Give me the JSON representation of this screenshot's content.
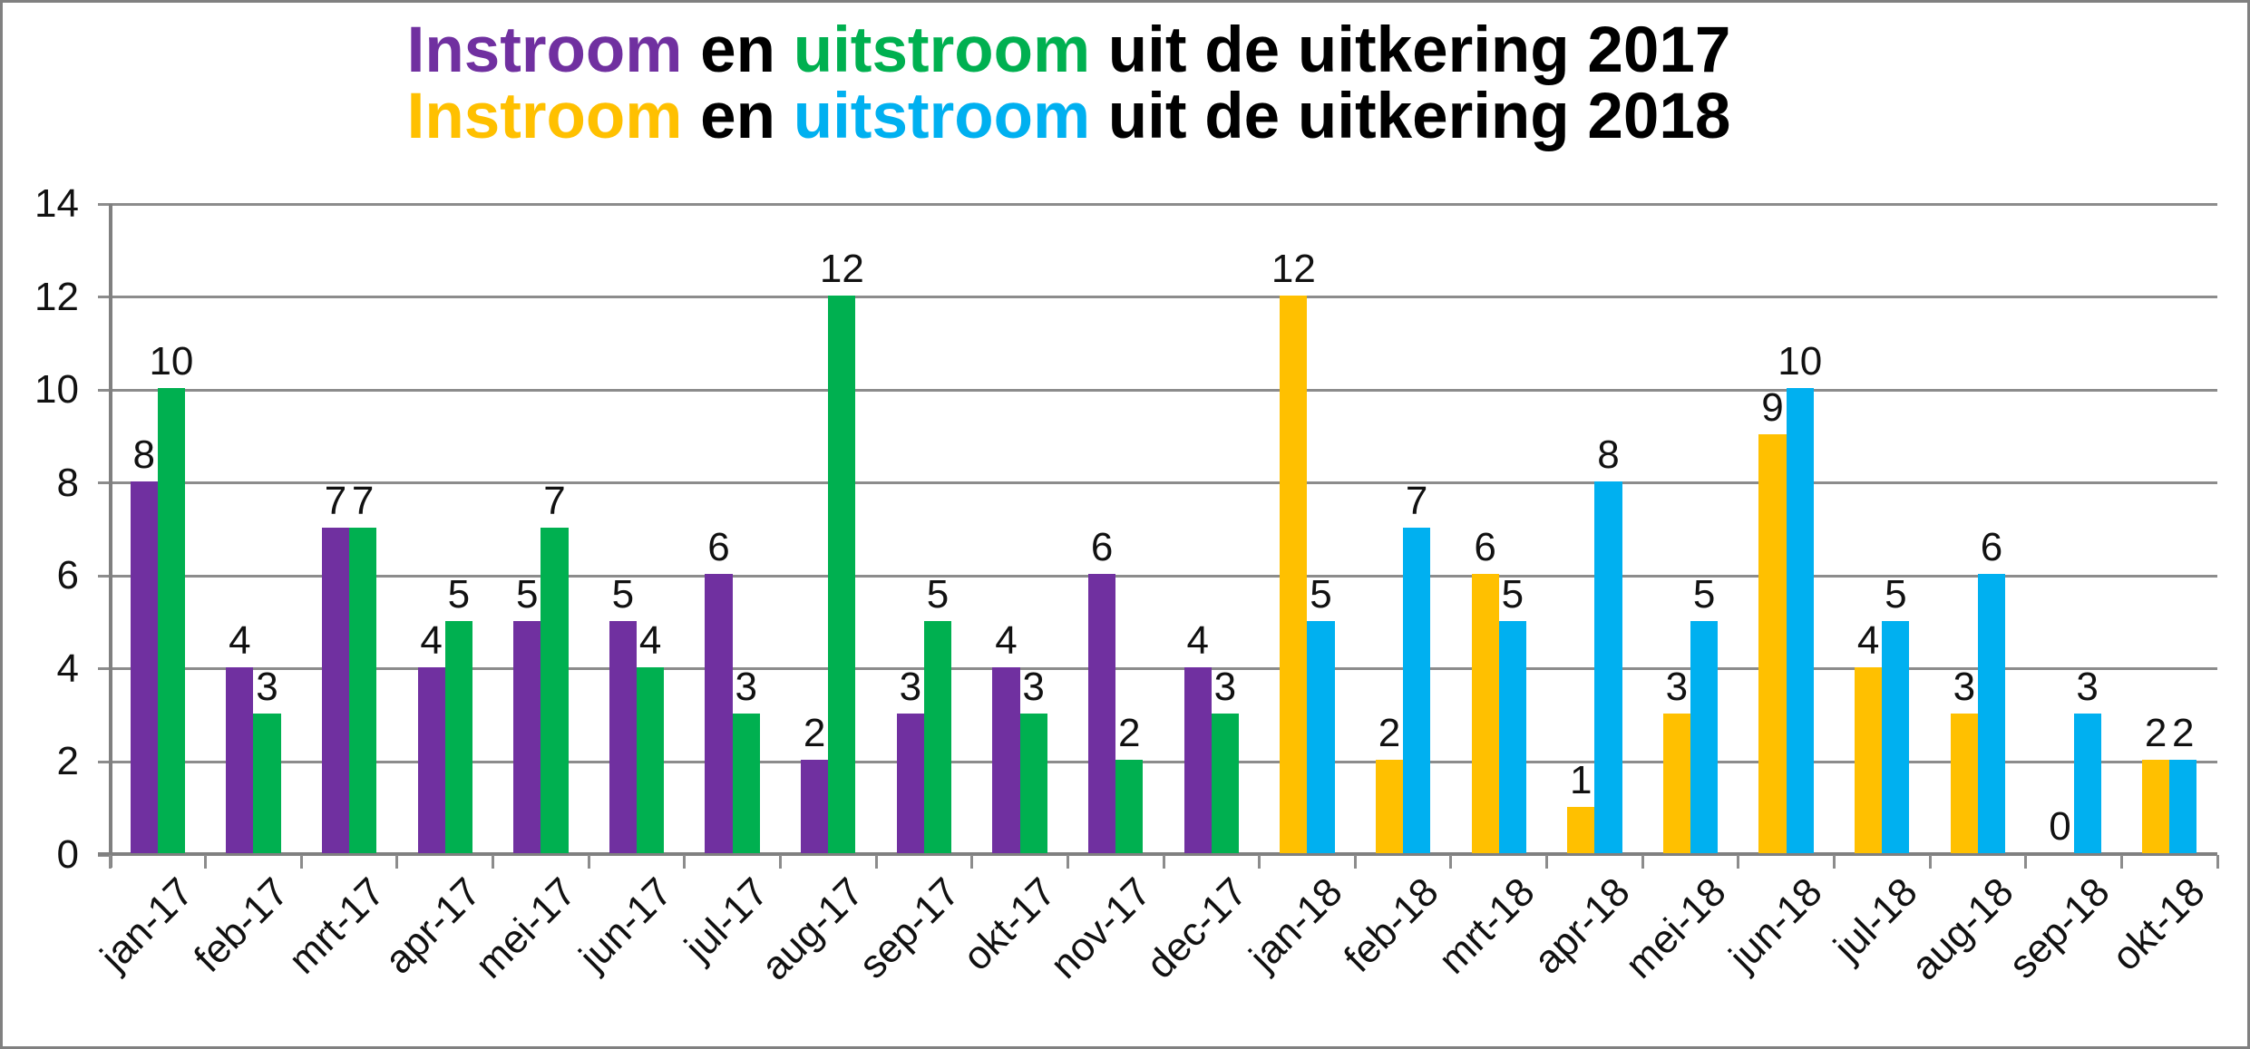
{
  "title": {
    "line1": {
      "instroom": "Instroom",
      "en": " en ",
      "uitstroom": "uitstroom",
      "rest": " uit de uitkering 2017"
    },
    "line2": {
      "instroom": "Instroom",
      "en": " en ",
      "uitstroom": "uitstroom",
      "rest": " uit de uitkering 2018"
    }
  },
  "colors": {
    "instroom_2017": "#7030A0",
    "uitstroom_2017": "#00B050",
    "instroom_2018": "#FFC000",
    "uitstroom_2018": "#00B0F0",
    "gridline": "#8C8C8C",
    "axis": "#808080",
    "border": "#808080",
    "label_text": "#111111",
    "title_text": "#000000"
  },
  "chart_data": {
    "type": "bar",
    "title_line1": "Instroom en uitstroom uit de uitkering 2017",
    "title_line2": "Instroom en uitstroom uit de uitkering 2018",
    "categories": [
      "jan-17",
      "feb-17",
      "mrt-17",
      "apr-17",
      "mei-17",
      "jun-17",
      "jul-17",
      "aug-17",
      "sep-17",
      "okt-17",
      "nov-17",
      "dec-17",
      "jan-18",
      "feb-18",
      "mrt-18",
      "apr-18",
      "mei-18",
      "jun-18",
      "jul-18",
      "aug-18",
      "sep-18",
      "okt-18"
    ],
    "series": [
      {
        "name": "Instroom",
        "values": [
          8,
          4,
          7,
          4,
          5,
          5,
          6,
          2,
          3,
          4,
          6,
          4,
          12,
          2,
          6,
          1,
          3,
          9,
          4,
          3,
          0,
          2
        ],
        "color_2017": "#7030A0",
        "color_2018": "#FFC000"
      },
      {
        "name": "uitstroom",
        "values": [
          10,
          3,
          7,
          5,
          7,
          4,
          3,
          12,
          5,
          3,
          2,
          3,
          5,
          7,
          5,
          8,
          5,
          10,
          5,
          6,
          3,
          2
        ],
        "color_2017": "#00B050",
        "color_2018": "#00B0F0"
      }
    ],
    "year_split_index": 12,
    "ylim": [
      0,
      14
    ],
    "ytick_step": 2,
    "yticks": [
      0,
      2,
      4,
      6,
      8,
      10,
      12,
      14
    ],
    "grid": true,
    "legend_position": "none",
    "bar_value_labels": true,
    "xlabel": "",
    "ylabel": ""
  }
}
